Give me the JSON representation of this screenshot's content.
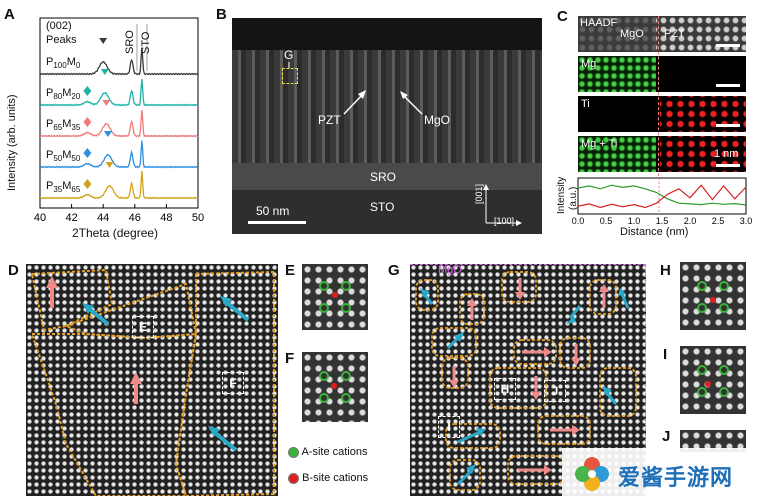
{
  "panels": {
    "A": {
      "label": "A",
      "peaks_title": "(002)",
      "peaks_word": "Peaks",
      "sro": "SRO",
      "sto": "STO",
      "ylabel": "Intensity (arb. units)",
      "xlabel": "2Theta (degree)",
      "samples": [
        {
          "P": "P",
          "p_sub": "100",
          "M": "M",
          "m_sub": "0",
          "color": "#3a3a3a"
        },
        {
          "P": "P",
          "p_sub": "80",
          "M": "M",
          "m_sub": "20",
          "color": "#1fb3a8"
        },
        {
          "P": "P",
          "p_sub": "65",
          "M": "M",
          "m_sub": "35",
          "color": "#f07b7b"
        },
        {
          "P": "P",
          "p_sub": "50",
          "M": "M",
          "m_sub": "50",
          "color": "#2f8fe0"
        },
        {
          "P": "P",
          "p_sub": "35",
          "M": "M",
          "m_sub": "65",
          "color": "#d4a21a"
        }
      ]
    },
    "B": {
      "label": "B",
      "g": "G",
      "pzt": "PZT",
      "mgo": "MgO",
      "sro": "SRO",
      "sto": "STO",
      "scale": "50 nm",
      "axis_001": "[001]",
      "axis_100": "[100]"
    },
    "C": {
      "label": "C",
      "haadf": "HAADF",
      "mgo": "MgO",
      "pzt": "PZT",
      "mg": "Mg",
      "ti": "Ti",
      "mgti": "Mg + Ti",
      "scale": "1 nm",
      "ylabel1": "Intensity",
      "ylabel2": "(a.u.)",
      "xlabel": "Distance (nm)"
    },
    "D": {
      "label": "D",
      "box_e": "E",
      "box_f": "F"
    },
    "E": {
      "label": "E"
    },
    "F": {
      "label": "F"
    },
    "G": {
      "label": "G",
      "mgo": "MgO",
      "box_h": "H",
      "box_i": "I",
      "box_j": "J"
    },
    "H": {
      "label": "H"
    },
    "I": {
      "label": "I"
    },
    "J": {
      "label": "J"
    }
  },
  "legend": {
    "a_site": "A-site cations",
    "b_site": "B-site cations",
    "a_color": "#3cb43c",
    "b_color": "#e02020"
  },
  "watermark": {
    "text": "爱酱手游网"
  },
  "chart_data": [
    {
      "type": "line",
      "panel": "A",
      "title": "",
      "xlabel": "2Theta (degree)",
      "ylabel": "Intensity (arb. units)",
      "xlim": [
        40,
        50
      ],
      "x_ticks": [
        40,
        42,
        44,
        46,
        48,
        50
      ],
      "series": [
        {
          "name": "P100M0"
        },
        {
          "name": "P80M20"
        },
        {
          "name": "P65M35"
        },
        {
          "name": "P50M50"
        },
        {
          "name": "P35M65"
        }
      ]
    },
    {
      "type": "line",
      "panel": "C",
      "xlabel": "Distance (nm)",
      "ylabel": "Intensity (a.u.)",
      "xlim": [
        0,
        3.0
      ],
      "x_ticks": [
        0.0,
        0.5,
        1.0,
        1.5,
        2.0,
        2.5,
        3.0
      ],
      "series": [
        {
          "color": "#2a9d2a",
          "x": [
            0,
            0.2,
            0.4,
            0.6,
            0.8,
            1.0,
            1.2,
            1.4,
            1.6,
            1.8,
            2.0,
            2.2,
            2.4,
            2.6,
            2.8,
            3.0
          ],
          "y": [
            0.72,
            0.78,
            0.7,
            0.8,
            0.74,
            0.78,
            0.7,
            0.6,
            0.42,
            0.3,
            0.28,
            0.26,
            0.3,
            0.27,
            0.29,
            0.25
          ]
        },
        {
          "color": "#d82020",
          "x": [
            0,
            0.2,
            0.4,
            0.6,
            0.8,
            1.0,
            1.2,
            1.4,
            1.6,
            1.8,
            2.0,
            2.2,
            2.4,
            2.6,
            2.8,
            3.0
          ],
          "y": [
            0.22,
            0.28,
            0.18,
            0.27,
            0.2,
            0.26,
            0.18,
            0.3,
            0.55,
            0.7,
            0.45,
            0.8,
            0.4,
            0.78,
            0.42,
            0.75
          ]
        }
      ]
    }
  ]
}
